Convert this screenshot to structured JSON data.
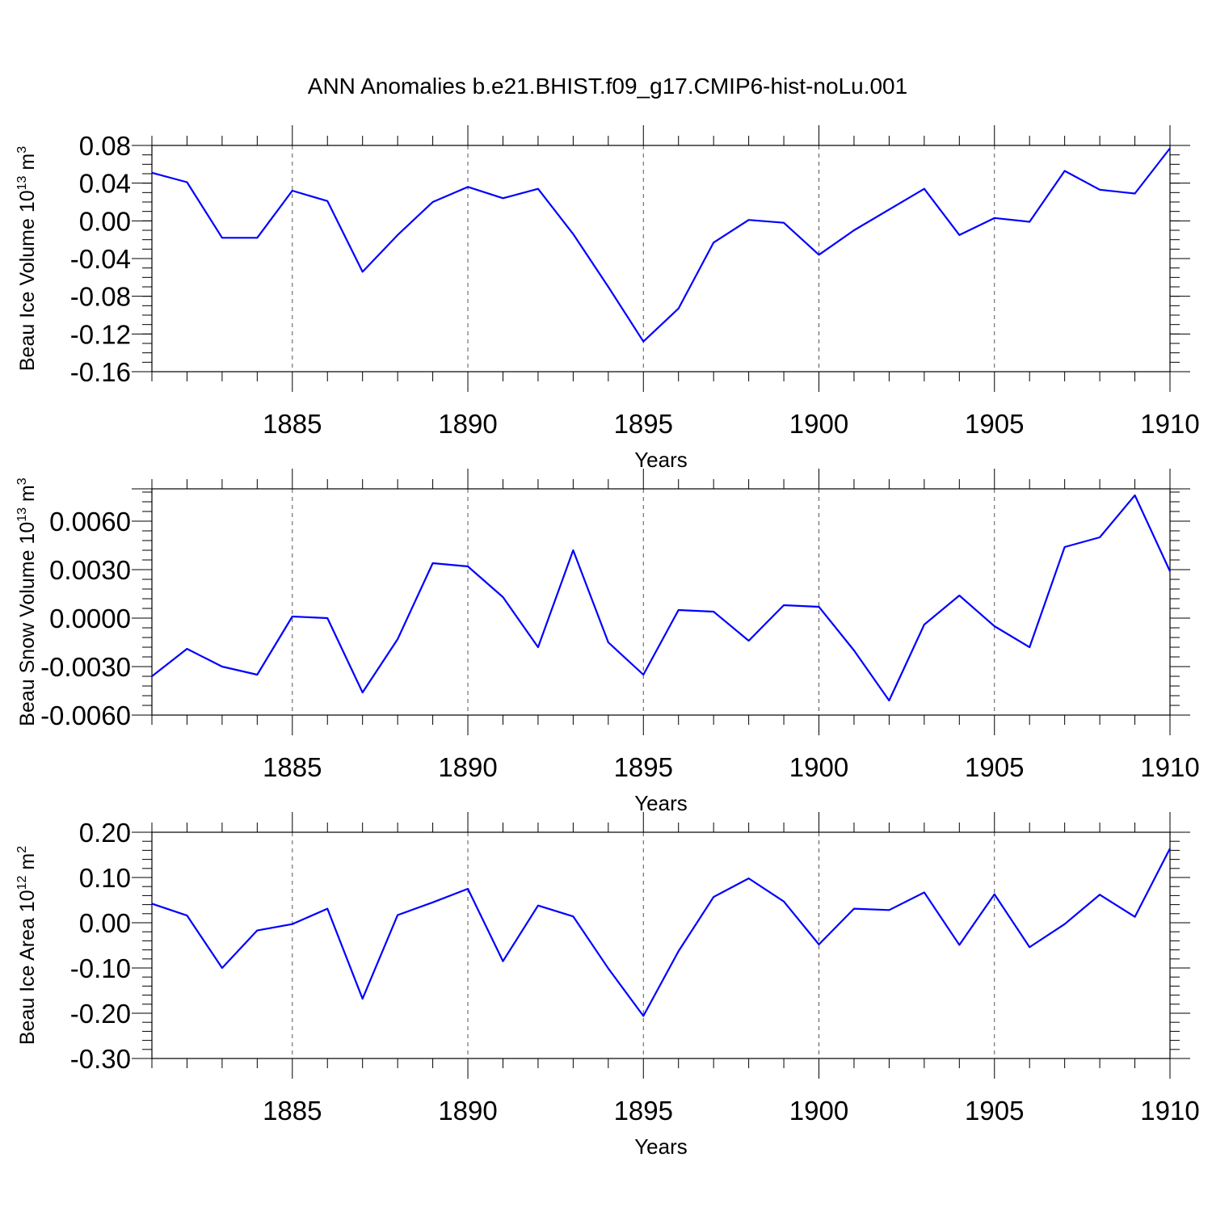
{
  "figure": {
    "title": "ANN Anomalies b.e21.BHIST.f09_g17.CMIP6-hist-noLu.001"
  },
  "colors": {
    "series": "#0000ff",
    "axis": "#000000",
    "grid": "#555555"
  },
  "chart_data": [
    {
      "type": "line",
      "ylabel": {
        "main": "Beau Ice Volume 10",
        "exp": "13",
        "unit": " m",
        "unit_exp": "3"
      },
      "xlabel": "Years",
      "xlim": [
        1881,
        1910
      ],
      "ylim": [
        -0.16,
        0.08
      ],
      "yticks": [
        -0.16,
        -0.12,
        -0.08,
        -0.04,
        0.0,
        0.04,
        0.08
      ],
      "ytick_labels": [
        "-0.16",
        "-0.12",
        "-0.08",
        "-0.04",
        "0.00",
        "0.04",
        "0.08"
      ],
      "yminor_step": 0.01,
      "xticks": [
        1885,
        1890,
        1895,
        1900,
        1905,
        1910
      ],
      "xtick_labels": [
        "1885",
        "1890",
        "1895",
        "1900",
        "1905",
        "1910"
      ],
      "series": [
        {
          "name": "Beau Ice Volume",
          "x": [
            1881,
            1882,
            1883,
            1884,
            1885,
            1886,
            1887,
            1888,
            1889,
            1890,
            1891,
            1892,
            1893,
            1894,
            1895,
            1896,
            1897,
            1898,
            1899,
            1900,
            1901,
            1902,
            1903,
            1904,
            1905,
            1906,
            1907,
            1908,
            1909,
            1910
          ],
          "values": [
            0.051,
            0.041,
            -0.018,
            -0.018,
            0.032,
            0.021,
            -0.054,
            -0.015,
            0.02,
            0.036,
            0.024,
            0.034,
            -0.014,
            -0.07,
            -0.128,
            -0.093,
            -0.023,
            0.001,
            -0.002,
            -0.036,
            -0.01,
            0.012,
            0.034,
            -0.015,
            0.003,
            -0.001,
            0.053,
            0.033,
            0.029,
            0.077
          ]
        }
      ]
    },
    {
      "type": "line",
      "ylabel": {
        "main": "Beau Snow Volume 10",
        "exp": "13",
        "unit": " m",
        "unit_exp": "3"
      },
      "xlabel": "Years",
      "xlim": [
        1881,
        1910
      ],
      "ylim": [
        -0.006,
        0.008
      ],
      "yticks": [
        -0.006,
        -0.003,
        0.0,
        0.003,
        0.006
      ],
      "ytick_labels": [
        "-0.0060",
        "-0.0030",
        "0.0000",
        "0.0030",
        "0.0060"
      ],
      "yminor_step": 0.0006,
      "xticks": [
        1885,
        1890,
        1895,
        1900,
        1905,
        1910
      ],
      "xtick_labels": [
        "1885",
        "1890",
        "1895",
        "1900",
        "1905",
        "1910"
      ],
      "series": [
        {
          "name": "Beau Snow Volume",
          "x": [
            1881,
            1882,
            1883,
            1884,
            1885,
            1886,
            1887,
            1888,
            1889,
            1890,
            1891,
            1892,
            1893,
            1894,
            1895,
            1896,
            1897,
            1898,
            1899,
            1900,
            1901,
            1902,
            1903,
            1904,
            1905,
            1906,
            1907,
            1908,
            1909,
            1910
          ],
          "values": [
            -0.0036,
            -0.0019,
            -0.003,
            -0.0035,
            0.0001,
            0.0,
            -0.0046,
            -0.0013,
            0.0034,
            0.0032,
            0.0013,
            -0.0018,
            0.0042,
            -0.0015,
            -0.0035,
            0.0005,
            0.0004,
            -0.0014,
            0.0008,
            0.0007,
            -0.002,
            -0.0051,
            -0.0004,
            0.0014,
            -0.0005,
            -0.0018,
            0.0044,
            0.005,
            0.0076,
            0.0029
          ]
        }
      ]
    },
    {
      "type": "line",
      "ylabel": {
        "main": "Beau Ice Area 10",
        "exp": "12",
        "unit": " m",
        "unit_exp": "2"
      },
      "xlabel": "Years",
      "xlim": [
        1881,
        1910
      ],
      "ylim": [
        -0.3,
        0.2
      ],
      "yticks": [
        -0.3,
        -0.2,
        -0.1,
        0.0,
        0.1,
        0.2
      ],
      "ytick_labels": [
        "-0.30",
        "-0.20",
        "-0.10",
        "0.00",
        "0.10",
        "0.20"
      ],
      "yminor_step": 0.02,
      "xticks": [
        1885,
        1890,
        1895,
        1900,
        1905,
        1910
      ],
      "xtick_labels": [
        "1885",
        "1890",
        "1895",
        "1900",
        "1905",
        "1910"
      ],
      "series": [
        {
          "name": "Beau Ice Area",
          "x": [
            1881,
            1882,
            1883,
            1884,
            1885,
            1886,
            1887,
            1888,
            1889,
            1890,
            1891,
            1892,
            1893,
            1894,
            1895,
            1896,
            1897,
            1898,
            1899,
            1900,
            1901,
            1902,
            1903,
            1904,
            1905,
            1906,
            1907,
            1908,
            1909,
            1910
          ],
          "values": [
            0.042,
            0.016,
            -0.1,
            -0.017,
            -0.003,
            0.031,
            -0.168,
            0.017,
            0.045,
            0.075,
            -0.085,
            0.038,
            0.014,
            -0.101,
            -0.206,
            -0.063,
            0.057,
            0.098,
            0.047,
            -0.048,
            0.031,
            0.028,
            0.067,
            -0.049,
            0.063,
            -0.054,
            -0.003,
            0.062,
            0.013,
            0.164
          ]
        }
      ]
    }
  ]
}
